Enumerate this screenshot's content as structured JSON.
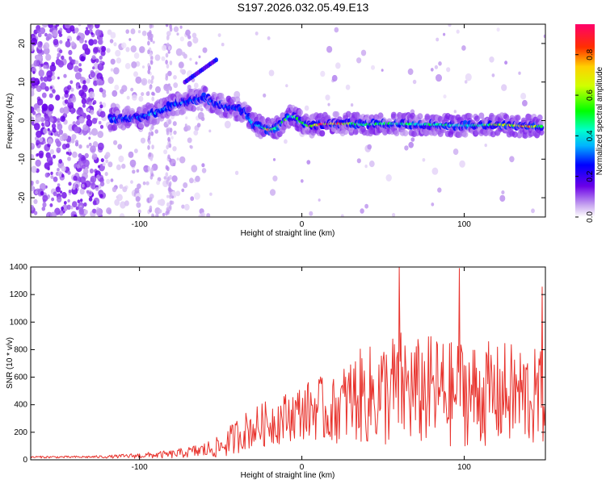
{
  "title": "S197.2026.032.05.49.E13",
  "chart_data": [
    {
      "type": "heatmap",
      "xlabel": "Height of straight line (km)",
      "ylabel": "Frequency (Hz)",
      "xlim": [
        -167,
        150
      ],
      "ylim": [
        -25,
        25
      ],
      "xticks": [
        -100,
        0,
        100
      ],
      "yticks": [
        -20,
        -10,
        0,
        10,
        20
      ],
      "colorbar": {
        "label": "Normalized spectral amplitude",
        "range": [
          0,
          0.95
        ],
        "ticks": [
          "0.0",
          "0.2",
          "0.4",
          "0.6",
          "0.8"
        ],
        "tick_values": [
          0,
          0.2,
          0.4,
          0.6,
          0.8
        ]
      },
      "ridge": {
        "x": [
          -118,
          -100,
          -90,
          -80,
          -70,
          -60,
          -50,
          -40,
          -35,
          -30,
          -25,
          -20,
          -16,
          -12,
          -8,
          -4,
          0,
          5,
          10,
          20,
          30,
          40,
          50,
          60,
          70,
          80,
          90,
          100,
          110,
          120,
          130,
          140,
          148
        ],
        "freq": [
          0.5,
          0.8,
          2.0,
          4.0,
          5.0,
          6.0,
          4.0,
          3.0,
          2.5,
          -1.0,
          -1.5,
          -2.5,
          -2.0,
          -0.5,
          1.0,
          1.0,
          -0.5,
          -1.5,
          -1.0,
          -0.8,
          -0.8,
          -1.0,
          -0.8,
          -0.8,
          -1.0,
          -1.0,
          -1.2,
          -1.3,
          -1.2,
          -1.0,
          -1.2,
          -1.5,
          -1.5
        ],
        "amp": [
          0.3,
          0.3,
          0.35,
          0.3,
          0.3,
          0.3,
          0.3,
          0.3,
          0.25,
          0.35,
          0.4,
          0.75,
          0.5,
          0.55,
          0.45,
          0.5,
          0.55,
          0.7,
          0.85,
          0.9,
          0.55,
          0.45,
          0.5,
          0.45,
          0.45,
          0.5,
          0.45,
          0.45,
          0.5,
          0.6,
          0.7,
          0.8,
          0.5
        ]
      }
    },
    {
      "type": "line",
      "xlabel": "Height of straight line (km)",
      "ylabel": "SNR (10 * v/v)",
      "xlim": [
        -167,
        150
      ],
      "ylim": [
        0,
        1400
      ],
      "xticks": [
        -100,
        0,
        100
      ],
      "yticks": [
        0,
        200,
        400,
        600,
        800,
        1000,
        1200,
        1400
      ],
      "color": "#e8322c",
      "envelope": {
        "x": [
          -167,
          -140,
          -120,
          -100,
          -90,
          -80,
          -70,
          -60,
          -50,
          -45,
          -40,
          -35,
          -30,
          -25,
          -20,
          -15,
          -10,
          -5,
          0,
          5,
          10,
          15,
          20,
          25,
          30,
          35,
          40,
          45,
          50,
          55,
          60,
          65,
          70,
          75,
          80,
          85,
          90,
          95,
          100,
          105,
          110,
          115,
          120,
          125,
          130,
          135,
          140,
          145,
          150
        ],
        "mean": [
          20,
          20,
          22,
          30,
          35,
          40,
          55,
          70,
          95,
          130,
          175,
          210,
          230,
          250,
          270,
          290,
          310,
          330,
          350,
          360,
          390,
          330,
          360,
          400,
          440,
          460,
          460,
          470,
          480,
          500,
          520,
          520,
          480,
          500,
          500,
          500,
          470,
          480,
          500,
          480,
          470,
          480,
          460,
          480,
          470,
          470,
          460,
          440,
          450
        ],
        "spread": [
          8,
          8,
          10,
          20,
          25,
          30,
          40,
          60,
          80,
          110,
          130,
          140,
          150,
          160,
          170,
          180,
          180,
          190,
          200,
          220,
          250,
          220,
          240,
          280,
          320,
          340,
          360,
          380,
          400,
          420,
          430,
          420,
          400,
          410,
          410,
          410,
          390,
          390,
          400,
          390,
          380,
          380,
          370,
          380,
          380,
          380,
          370,
          360,
          360
        ]
      },
      "peaks": [
        {
          "x": 60,
          "y": 1400
        },
        {
          "x": 97,
          "y": 1390
        },
        {
          "x": 148,
          "y": 1255
        }
      ]
    }
  ]
}
